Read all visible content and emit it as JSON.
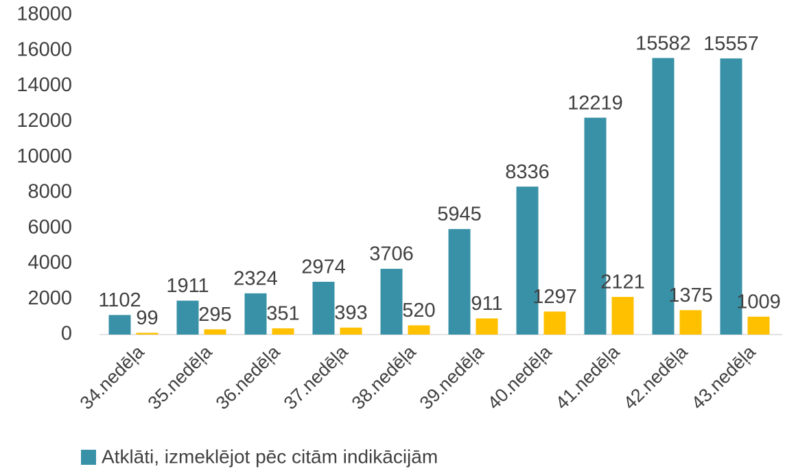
{
  "chart_data": {
    "type": "bar",
    "categories": [
      "34.nedēļa",
      "35.nedēļa",
      "36.nedēļa",
      "37.nedēļa",
      "38.nedēļa",
      "39.nedēļa",
      "40.nedēļa",
      "41.nedēļa",
      "42.nedēļa",
      "43.nedēļa"
    ],
    "series": [
      {
        "name": "Atklāti, izmeklējot pēc citām indikācijām",
        "color": "#3891a7",
        "values": [
          1102,
          1911,
          2324,
          2974,
          3706,
          5945,
          8336,
          12219,
          15582,
          15557
        ]
      },
      {
        "color": "#ffc000",
        "values": [
          99,
          295,
          351,
          393,
          520,
          911,
          1297,
          2121,
          1375,
          1009
        ]
      }
    ],
    "ylim": [
      0,
      18000
    ],
    "yticks": [
      0,
      2000,
      4000,
      6000,
      8000,
      10000,
      12000,
      14000,
      16000,
      18000
    ],
    "grid": false,
    "legend": "bottom"
  }
}
